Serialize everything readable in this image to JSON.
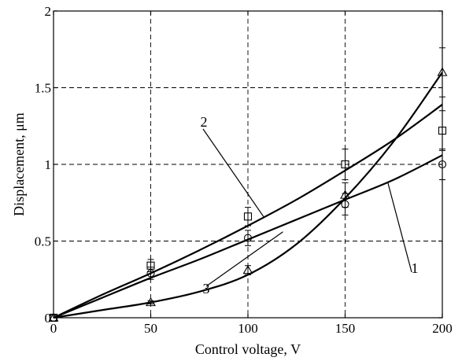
{
  "chart_data": {
    "type": "line",
    "title": "",
    "xlabel": "Control voltage, V",
    "ylabel": "Displacement, μm",
    "xlim": [
      0,
      200
    ],
    "ylim": [
      0,
      2
    ],
    "x_ticks": [
      "0",
      "50",
      "100",
      "150",
      "200"
    ],
    "y_ticks": [
      "0",
      "0.5",
      "1",
      "1.5",
      "2"
    ],
    "grid": true,
    "series": [
      {
        "name": "1",
        "fit_x": [
          0,
          25,
          50,
          75,
          100,
          125,
          150,
          175,
          200
        ],
        "fit_y": [
          0,
          0.13,
          0.26,
          0.38,
          0.51,
          0.64,
          0.77,
          0.9,
          1.06
        ],
        "marker": "circle",
        "points_x": [
          0,
          50,
          100,
          150,
          200
        ],
        "points_y": [
          0,
          0.29,
          0.52,
          0.74,
          1.0
        ],
        "err": [
          0,
          0.04,
          0.05,
          0.07,
          0.1
        ]
      },
      {
        "name": "2",
        "fit_x": [
          0,
          25,
          50,
          75,
          100,
          125,
          150,
          175,
          200
        ],
        "fit_y": [
          0,
          0.15,
          0.29,
          0.44,
          0.6,
          0.77,
          0.96,
          1.16,
          1.39
        ],
        "marker": "square",
        "points_x": [
          0,
          50,
          100,
          150,
          200
        ],
        "points_y": [
          0,
          0.34,
          0.66,
          1.0,
          1.22
        ],
        "err": [
          0,
          0.04,
          0.06,
          0.1,
          0.13
        ]
      },
      {
        "name": "3",
        "fit_x": [
          0,
          25,
          50,
          75,
          100,
          125,
          150,
          175,
          200
        ],
        "fit_y": [
          0,
          0.05,
          0.1,
          0.17,
          0.28,
          0.48,
          0.78,
          1.15,
          1.6
        ],
        "marker": "triangle",
        "points_x": [
          0,
          50,
          100,
          150,
          200
        ],
        "points_y": [
          0,
          0.1,
          0.31,
          0.8,
          1.6
        ],
        "err": [
          0,
          0.01,
          0.03,
          0.08,
          0.16
        ]
      }
    ],
    "annotations": [
      {
        "text": "1",
        "series": "1"
      },
      {
        "text": "2",
        "series": "2"
      },
      {
        "text": "3",
        "series": "3"
      }
    ],
    "colors": {
      "line": "#000000",
      "grid": "#000000",
      "background": "#ffffff"
    }
  }
}
